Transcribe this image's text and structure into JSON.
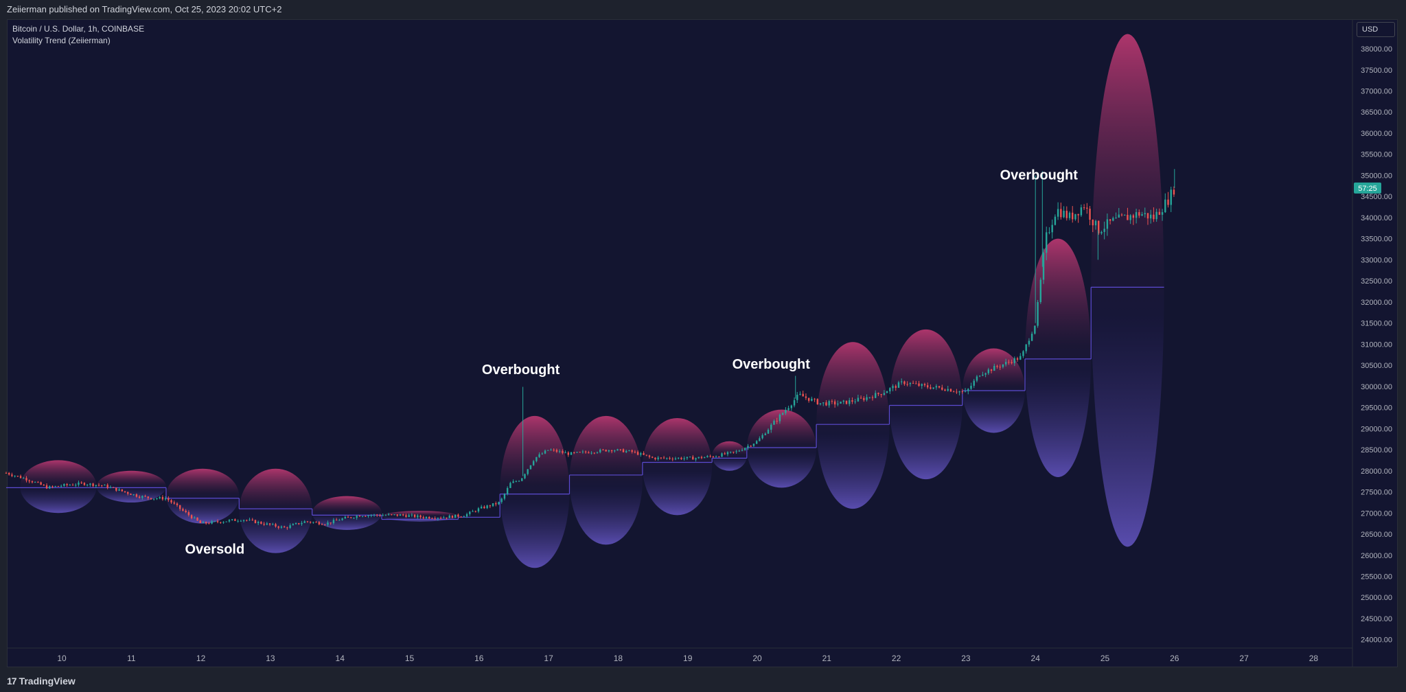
{
  "header": {
    "published": "Zeiierman published on TradingView.com, Oct 25, 2023 20:02 UTC+2"
  },
  "legend": {
    "symbol": "Bitcoin / U.S. Dollar, 1h, COINBASE",
    "indicator": "Volatility Trend (Zeiierman)"
  },
  "price_scale": {
    "currency": "USD",
    "last_price_label": "57:25",
    "last_price_color": "#26a69a"
  },
  "footer": {
    "brand": "TradingView",
    "brand_mark": "17"
  },
  "colors": {
    "background": "#131530",
    "up_candle": "#26a69a",
    "down_candle": "#ef5350",
    "trend_line_upper": "#c2185b",
    "trend_line_lower": "#5c4bd1",
    "bubble_top": "#e0407f",
    "bubble_bottom": "#6a5acd"
  },
  "chart_data": {
    "type": "candlestick",
    "title": "",
    "xlabel": "",
    "ylabel": "",
    "ylim": [
      23800,
      38700
    ],
    "y_ticks": [
      24000,
      24500,
      25000,
      25500,
      26000,
      26500,
      27000,
      27500,
      28000,
      28500,
      29000,
      29500,
      30000,
      30500,
      31000,
      31500,
      32000,
      32500,
      33000,
      33500,
      34000,
      34500,
      35000,
      35500,
      36000,
      36500,
      37000,
      37500,
      38000
    ],
    "x_range_days": [
      9.2,
      28.6
    ],
    "x_ticks": [
      "10",
      "11",
      "12",
      "13",
      "14",
      "15",
      "16",
      "17",
      "18",
      "19",
      "20",
      "21",
      "22",
      "23",
      "24",
      "25",
      "26",
      "27",
      "28"
    ],
    "annotations": [
      {
        "text": "Oversold",
        "day": 12.2,
        "price": 26040
      },
      {
        "text": "Overbought",
        "day": 16.6,
        "price": 30290
      },
      {
        "text": "Overbought",
        "day": 20.2,
        "price": 30420
      },
      {
        "text": "Overbought",
        "day": 24.05,
        "price": 34900
      }
    ],
    "price_path": [
      [
        9.2,
        27950
      ],
      [
        9.5,
        27800
      ],
      [
        9.8,
        27600
      ],
      [
        10.0,
        27650
      ],
      [
        10.3,
        27700
      ],
      [
        10.6,
        27650
      ],
      [
        10.9,
        27500
      ],
      [
        11.1,
        27400
      ],
      [
        11.3,
        27350
      ],
      [
        11.5,
        27350
      ],
      [
        11.7,
        27100
      ],
      [
        12.0,
        26750
      ],
      [
        12.3,
        26800
      ],
      [
        12.6,
        26850
      ],
      [
        12.9,
        26750
      ],
      [
        13.2,
        26650
      ],
      [
        13.5,
        26800
      ],
      [
        13.8,
        26750
      ],
      [
        14.0,
        26850
      ],
      [
        14.3,
        26950
      ],
      [
        14.6,
        26950
      ],
      [
        14.9,
        26950
      ],
      [
        15.2,
        26900
      ],
      [
        15.5,
        26900
      ],
      [
        15.8,
        26950
      ],
      [
        16.0,
        27100
      ],
      [
        16.3,
        27250
      ],
      [
        16.45,
        27700
      ],
      [
        16.6,
        27800
      ],
      [
        16.8,
        28300
      ],
      [
        17.0,
        28500
      ],
      [
        17.3,
        28400
      ],
      [
        17.6,
        28450
      ],
      [
        17.9,
        28500
      ],
      [
        18.2,
        28450
      ],
      [
        18.5,
        28300
      ],
      [
        18.8,
        28300
      ],
      [
        19.1,
        28300
      ],
      [
        19.4,
        28350
      ],
      [
        19.7,
        28450
      ],
      [
        20.0,
        28700
      ],
      [
        20.3,
        29250
      ],
      [
        20.6,
        29800
      ],
      [
        20.9,
        29600
      ],
      [
        21.2,
        29600
      ],
      [
        21.5,
        29700
      ],
      [
        21.8,
        29850
      ],
      [
        22.1,
        30100
      ],
      [
        22.4,
        30000
      ],
      [
        22.7,
        29950
      ],
      [
        23.0,
        29850
      ],
      [
        23.2,
        30300
      ],
      [
        23.5,
        30500
      ],
      [
        23.8,
        30700
      ],
      [
        24.0,
        31500
      ],
      [
        24.15,
        33500
      ],
      [
        24.3,
        34200
      ],
      [
        24.5,
        34000
      ],
      [
        24.7,
        34300
      ],
      [
        24.9,
        33700
      ],
      [
        25.1,
        33900
      ],
      [
        25.3,
        34000
      ],
      [
        25.5,
        34100
      ],
      [
        25.7,
        34000
      ],
      [
        25.9,
        34400
      ],
      [
        26.0,
        34700
      ]
    ],
    "wick_spikes": [
      {
        "day": 16.63,
        "high": 29990
      },
      {
        "day": 20.55,
        "high": 30250
      },
      {
        "day": 24.0,
        "high": 35000
      },
      {
        "day": 24.1,
        "high": 35100
      },
      {
        "day": 24.9,
        "high": 33000
      },
      {
        "day": 26.0,
        "high": 35150
      }
    ],
    "trend_segments": [
      {
        "from": 9.2,
        "to": 11.5,
        "level": 27600
      },
      {
        "from": 11.5,
        "to": 12.55,
        "level": 27350
      },
      {
        "from": 12.55,
        "to": 13.6,
        "level": 27100
      },
      {
        "from": 13.6,
        "to": 14.6,
        "level": 26950
      },
      {
        "from": 14.6,
        "to": 15.7,
        "level": 26850
      },
      {
        "from": 15.7,
        "to": 16.3,
        "level": 26900
      },
      {
        "from": 16.3,
        "to": 17.3,
        "level": 27450
      },
      {
        "from": 17.3,
        "to": 18.35,
        "level": 27900
      },
      {
        "from": 18.35,
        "to": 19.35,
        "level": 28200
      },
      {
        "from": 19.35,
        "to": 19.85,
        "level": 28300
      },
      {
        "from": 19.85,
        "to": 20.85,
        "level": 28550
      },
      {
        "from": 20.85,
        "to": 21.9,
        "level": 29100
      },
      {
        "from": 21.9,
        "to": 22.95,
        "level": 29550
      },
      {
        "from": 22.95,
        "to": 23.85,
        "level": 29900
      },
      {
        "from": 23.85,
        "to": 24.8,
        "level": 30650
      },
      {
        "from": 24.8,
        "to": 25.85,
        "level": 32350
      }
    ],
    "volatility_bubbles": [
      {
        "from": 9.4,
        "to": 10.5,
        "top": 28250,
        "bottom": 27000
      },
      {
        "from": 10.5,
        "to": 11.5,
        "top": 28000,
        "bottom": 27250
      },
      {
        "from": 11.5,
        "to": 12.55,
        "top": 28050,
        "bottom": 26750
      },
      {
        "from": 12.55,
        "to": 13.6,
        "top": 28050,
        "bottom": 26050
      },
      {
        "from": 13.6,
        "to": 14.6,
        "top": 27400,
        "bottom": 26600
      },
      {
        "from": 14.6,
        "to": 15.7,
        "top": 27050,
        "bottom": 26800
      },
      {
        "from": 16.3,
        "to": 17.3,
        "top": 29300,
        "bottom": 25700
      },
      {
        "from": 17.3,
        "to": 18.35,
        "top": 29300,
        "bottom": 26250
      },
      {
        "from": 18.35,
        "to": 19.35,
        "top": 29250,
        "bottom": 26950
      },
      {
        "from": 19.35,
        "to": 19.85,
        "top": 28700,
        "bottom": 28000
      },
      {
        "from": 19.85,
        "to": 20.85,
        "top": 29450,
        "bottom": 27600
      },
      {
        "from": 20.85,
        "to": 21.9,
        "top": 31050,
        "bottom": 27100
      },
      {
        "from": 21.9,
        "to": 22.95,
        "top": 31350,
        "bottom": 27800
      },
      {
        "from": 22.95,
        "to": 23.85,
        "top": 30900,
        "bottom": 28900
      },
      {
        "from": 23.85,
        "to": 24.8,
        "top": 33500,
        "bottom": 27850
      },
      {
        "from": 24.8,
        "to": 25.85,
        "top": 38350,
        "bottom": 26200
      }
    ]
  }
}
